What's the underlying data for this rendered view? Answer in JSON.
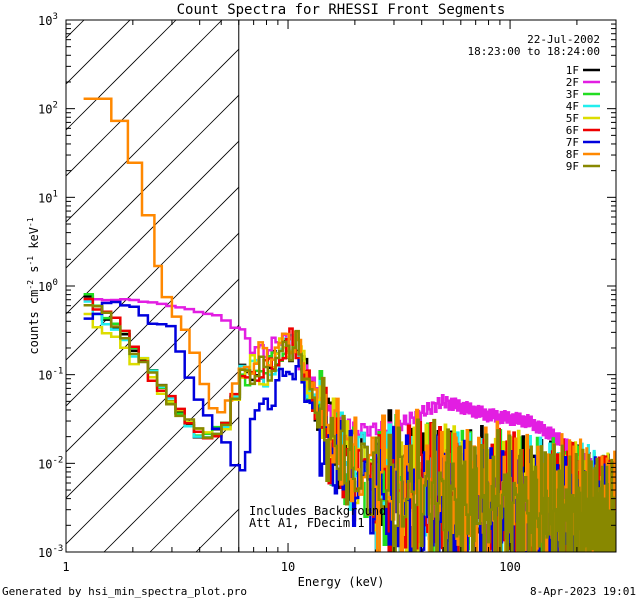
{
  "chart_data": {
    "type": "line",
    "title": "Count Spectra for RHESSI Front Segments",
    "xlabel": "Energy (keV)",
    "ylabel_parts": [
      "counts cm",
      "-2",
      " s",
      "-1",
      " keV",
      "-1"
    ],
    "xscale": "log",
    "yscale": "log",
    "xlim": [
      1,
      300
    ],
    "ylim": [
      0.001,
      1000
    ],
    "x_ticks": [
      {
        "value": 1,
        "label": "1"
      },
      {
        "value": 10,
        "label": "10"
      },
      {
        "value": 100,
        "label": "100"
      }
    ],
    "y_ticks": [
      {
        "value": 0.001,
        "base": "10",
        "exp": "-3"
      },
      {
        "value": 0.01,
        "base": "10",
        "exp": "-2"
      },
      {
        "value": 0.1,
        "base": "10",
        "exp": "-1"
      },
      {
        "value": 1,
        "base": "10",
        "exp": "0"
      },
      {
        "value": 10,
        "base": "10",
        "exp": "1"
      },
      {
        "value": 100,
        "base": "10",
        "exp": "2"
      },
      {
        "value": 1000,
        "base": "10",
        "exp": "3"
      }
    ],
    "date": "22-Jul-2002",
    "time_range": "18:23:00 to 18:24:00",
    "shaded_region_keV": [
      1,
      6
    ],
    "threshold_line_keV": 6,
    "annotations": [
      "Includes Background",
      "Att A1, FDecim 1"
    ],
    "footer_left": "Generated by hsi_min_spectra_plot.pro",
    "footer_right": "8-Apr-2023 19:01",
    "series": [
      {
        "name": "1F",
        "color": "#000000",
        "style": "thermal",
        "low": 0.9,
        "s": [
          0.7,
          2.9
        ]
      },
      {
        "name": "2F",
        "color": "#e21ee2",
        "style": "pileup",
        "s": [
          0,
          0
        ]
      },
      {
        "name": "3F",
        "color": "#22dd22",
        "style": "thermal",
        "low": 0.95,
        "s": [
          0.75,
          3.1
        ]
      },
      {
        "name": "4F",
        "color": "#22eeee",
        "style": "thermal",
        "low": 0.8,
        "s": [
          0.6,
          3.4
        ]
      },
      {
        "name": "5F",
        "color": "#dddd00",
        "style": "thermal",
        "low": 0.6,
        "s": [
          0.9,
          3.7
        ]
      },
      {
        "name": "6F",
        "color": "#ee0000",
        "style": "thermal",
        "low": 0.95,
        "s": [
          1.0,
          4.1
        ]
      },
      {
        "name": "7F",
        "color": "#0000dd",
        "style": "blue",
        "s": [
          1.1,
          4.3
        ]
      },
      {
        "name": "8F",
        "color": "#ff8800",
        "style": "orange",
        "s": [
          1.2,
          4.7
        ]
      },
      {
        "name": "9F",
        "color": "#888800",
        "style": "thermal",
        "low": 0.85,
        "s": [
          1.3,
          5.1
        ]
      }
    ],
    "profiles": {
      "thermal": [
        [
          1.2,
          0.9
        ],
        [
          1.5,
          0.55
        ],
        [
          1.8,
          0.35
        ],
        [
          2.1,
          0.18
        ],
        [
          2.5,
          0.09
        ],
        [
          3.0,
          0.05
        ],
        [
          3.5,
          0.03
        ],
        [
          4.0,
          0.022
        ],
        [
          4.5,
          0.02
        ],
        [
          5.0,
          0.025
        ],
        [
          5.5,
          0.03
        ],
        [
          6.0,
          0.08
        ],
        [
          7.0,
          0.12
        ],
        [
          8.0,
          0.1
        ],
        [
          9.0,
          0.15
        ],
        [
          10.0,
          0.22
        ],
        [
          11.0,
          0.2
        ],
        [
          12.0,
          0.1
        ],
        [
          13.0,
          0.05
        ],
        [
          15.0,
          0.02
        ],
        [
          20.0,
          0.008
        ],
        [
          30.0,
          0.005
        ],
        [
          50.0,
          0.004
        ],
        [
          80.0,
          0.0035
        ],
        [
          120.0,
          0.003
        ],
        [
          180.0,
          0.0025
        ],
        [
          250.0,
          0.002
        ],
        [
          300.0,
          0.0015
        ]
      ],
      "pileup": [
        [
          1.2,
          0.7
        ],
        [
          2.0,
          0.7
        ],
        [
          3.0,
          0.6
        ],
        [
          5.0,
          0.45
        ],
        [
          6.0,
          0.32
        ],
        [
          7.0,
          0.2
        ],
        [
          8.0,
          0.18
        ],
        [
          9.0,
          0.25
        ],
        [
          10.0,
          0.24
        ],
        [
          11.0,
          0.15
        ],
        [
          13.0,
          0.08
        ],
        [
          15.0,
          0.04
        ],
        [
          20.0,
          0.024
        ],
        [
          30.0,
          0.025
        ],
        [
          50.0,
          0.05
        ],
        [
          80.0,
          0.035
        ],
        [
          120.0,
          0.03
        ],
        [
          160.0,
          0.02
        ],
        [
          200.0,
          0.013
        ],
        [
          250.0,
          0.008
        ],
        [
          300.0,
          0.007
        ]
      ],
      "blue": [
        [
          1.2,
          0.45
        ],
        [
          1.5,
          0.6
        ],
        [
          2.0,
          0.6
        ],
        [
          2.5,
          0.4
        ],
        [
          3.0,
          0.3
        ],
        [
          3.5,
          0.12
        ],
        [
          4.0,
          0.05
        ],
        [
          5.0,
          0.02
        ],
        [
          5.8,
          0.009
        ],
        [
          6.5,
          0.015
        ],
        [
          7.0,
          0.03
        ],
        [
          8.0,
          0.05
        ],
        [
          9.0,
          0.07
        ],
        [
          10.0,
          0.12
        ],
        [
          11.0,
          0.11
        ],
        [
          12.0,
          0.07
        ],
        [
          13.0,
          0.04
        ],
        [
          15.0,
          0.015
        ],
        [
          20.0,
          0.006
        ],
        [
          30.0,
          0.004
        ],
        [
          50.0,
          0.003
        ],
        [
          80.0,
          0.0028
        ],
        [
          120.0,
          0.0025
        ],
        [
          180.0,
          0.002
        ],
        [
          300.0,
          0.0015
        ]
      ],
      "orange": [
        [
          1.2,
          160
        ],
        [
          1.6,
          140
        ],
        [
          1.9,
          40
        ],
        [
          2.2,
          12
        ],
        [
          2.5,
          3
        ],
        [
          2.7,
          1
        ],
        [
          3.0,
          0.6
        ],
        [
          3.5,
          0.3
        ],
        [
          4.0,
          0.1
        ],
        [
          4.5,
          0.05
        ],
        [
          5.0,
          0.04
        ],
        [
          5.5,
          0.05
        ],
        [
          6.0,
          0.1
        ],
        [
          7.0,
          0.15
        ],
        [
          8.0,
          0.16
        ],
        [
          9.0,
          0.2
        ],
        [
          10.0,
          0.26
        ],
        [
          11.0,
          0.22
        ],
        [
          12.0,
          0.12
        ],
        [
          13.0,
          0.06
        ],
        [
          15.0,
          0.025
        ],
        [
          20.0,
          0.01
        ],
        [
          30.0,
          0.006
        ],
        [
          50.0,
          0.005
        ],
        [
          80.0,
          0.004
        ],
        [
          120.0,
          0.0035
        ],
        [
          180.0,
          0.003
        ],
        [
          250.0,
          0.0022
        ],
        [
          300.0,
          0.0018
        ]
      ]
    }
  }
}
